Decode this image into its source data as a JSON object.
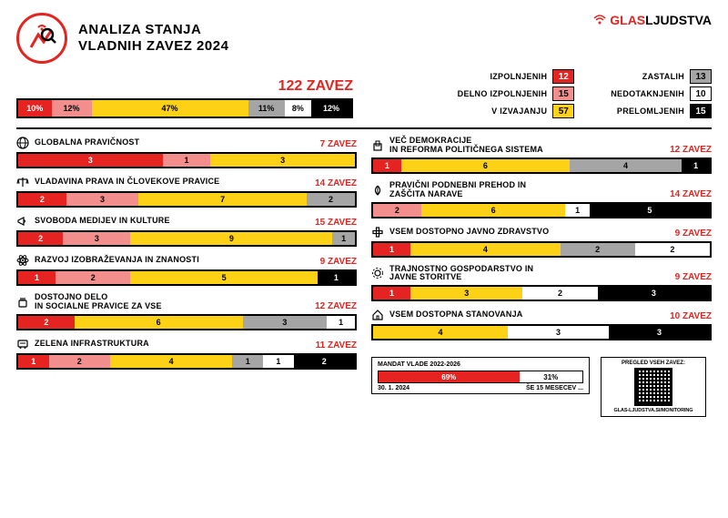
{
  "brand": {
    "glas": "GLAS",
    "ljudstva": "LJUDSTVA"
  },
  "title": {
    "line1": "ANALIZA STANJA",
    "line2": "VLADNIH ZAVEZ 2024"
  },
  "total": "122 ZAVEZ",
  "colors": {
    "izpolnjenih": "#e52320",
    "delno": "#f28e8c",
    "izvajanju": "#fcd116",
    "zastalih": "#a5a5a5",
    "nedotaknjenih": "#ffffff",
    "prelomljenih": "#000000",
    "text_on_dark": "#ffffff",
    "text_on_light": "#000000"
  },
  "summary_bar": [
    {
      "pct": 10,
      "label": "10%",
      "color": "#e52320",
      "text": "#fff"
    },
    {
      "pct": 12,
      "label": "12%",
      "color": "#f28e8c",
      "text": "#000"
    },
    {
      "pct": 47,
      "label": "47%",
      "color": "#fcd116",
      "text": "#000"
    },
    {
      "pct": 11,
      "label": "11%",
      "color": "#a5a5a5",
      "text": "#000"
    },
    {
      "pct": 8,
      "label": "8%",
      "color": "#ffffff",
      "text": "#000"
    },
    {
      "pct": 12,
      "label": "12%",
      "color": "#000000",
      "text": "#fff"
    }
  ],
  "status": {
    "left": [
      {
        "label": "IZPOLNJENIH",
        "value": "12",
        "bg": "#e52320",
        "fg": "#fff"
      },
      {
        "label": "DELNO IZPOLNJENIH",
        "value": "15",
        "bg": "#f28e8c",
        "fg": "#000"
      },
      {
        "label": "V IZVAJANJU",
        "value": "57",
        "bg": "#fcd116",
        "fg": "#000"
      }
    ],
    "right": [
      {
        "label": "ZASTALIH",
        "value": "13",
        "bg": "#a5a5a5",
        "fg": "#000"
      },
      {
        "label": "NEDOTAKNJENIH",
        "value": "10",
        "bg": "#ffffff",
        "fg": "#000"
      },
      {
        "label": "PRELOMLJENIH",
        "value": "15",
        "bg": "#000000",
        "fg": "#fff"
      }
    ]
  },
  "categories_left": [
    {
      "icon": "globe",
      "title": "GLOBALNA PRAVIČNOST",
      "count": "7 ZAVEZ",
      "segs": [
        {
          "v": 3,
          "c": "#e52320",
          "t": "#fff"
        },
        {
          "v": 1,
          "c": "#f28e8c",
          "t": "#000"
        },
        {
          "v": 3,
          "c": "#fcd116",
          "t": "#000"
        }
      ]
    },
    {
      "icon": "scale",
      "title": "VLADAVINA PRAVA IN ČLOVEKOVE PRAVICE",
      "count": "14 ZAVEZ",
      "segs": [
        {
          "v": 2,
          "c": "#e52320",
          "t": "#fff"
        },
        {
          "v": 3,
          "c": "#f28e8c",
          "t": "#000"
        },
        {
          "v": 7,
          "c": "#fcd116",
          "t": "#000"
        },
        {
          "v": 2,
          "c": "#a5a5a5",
          "t": "#000"
        }
      ]
    },
    {
      "icon": "megaphone",
      "title": "SVOBODA MEDIJEV IN KULTURE",
      "count": "15 ZAVEZ",
      "segs": [
        {
          "v": 2,
          "c": "#e52320",
          "t": "#fff"
        },
        {
          "v": 3,
          "c": "#f28e8c",
          "t": "#000"
        },
        {
          "v": 9,
          "c": "#fcd116",
          "t": "#000"
        },
        {
          "v": 1,
          "c": "#a5a5a5",
          "t": "#000"
        }
      ]
    },
    {
      "icon": "atom",
      "title": "RAZVOJ IZOBRAŽEVANJA IN ZNANOSTI",
      "count": "9 ZAVEZ",
      "segs": [
        {
          "v": 1,
          "c": "#e52320",
          "t": "#fff"
        },
        {
          "v": 2,
          "c": "#f28e8c",
          "t": "#000"
        },
        {
          "v": 5,
          "c": "#fcd116",
          "t": "#000"
        },
        {
          "v": 1,
          "c": "#000",
          "t": "#fff"
        }
      ]
    },
    {
      "icon": "fist",
      "title": "DOSTOJNO DELO\nIN SOCIALNE PRAVICE ZA VSE",
      "count": "12 ZAVEZ",
      "segs": [
        {
          "v": 2,
          "c": "#e52320",
          "t": "#fff"
        },
        {
          "v": 6,
          "c": "#fcd116",
          "t": "#000"
        },
        {
          "v": 3,
          "c": "#a5a5a5",
          "t": "#000"
        },
        {
          "v": 1,
          "c": "#fff",
          "t": "#000"
        }
      ]
    },
    {
      "icon": "train",
      "title": "ZELENA INFRASTRUKTURA",
      "count": "11 ZAVEZ",
      "segs": [
        {
          "v": 1,
          "c": "#e52320",
          "t": "#fff"
        },
        {
          "v": 2,
          "c": "#f28e8c",
          "t": "#000"
        },
        {
          "v": 4,
          "c": "#fcd116",
          "t": "#000"
        },
        {
          "v": 1,
          "c": "#a5a5a5",
          "t": "#000"
        },
        {
          "v": 1,
          "c": "#fff",
          "t": "#000"
        },
        {
          "v": 2,
          "c": "#000",
          "t": "#fff"
        }
      ]
    }
  ],
  "categories_right": [
    {
      "icon": "ballot",
      "title": "VEČ DEMOKRACIJE\nIN REFORMA POLITIČNEGA SISTEMA",
      "count": "12 ZAVEZ",
      "segs": [
        {
          "v": 1,
          "c": "#e52320",
          "t": "#fff"
        },
        {
          "v": 6,
          "c": "#fcd116",
          "t": "#000"
        },
        {
          "v": 4,
          "c": "#a5a5a5",
          "t": "#000"
        },
        {
          "v": 1,
          "c": "#000",
          "t": "#fff"
        }
      ]
    },
    {
      "icon": "leaf",
      "title": "PRAVIČNI PODNEBNI PREHOD IN\nZAŠČITA NARAVE",
      "count": "14 ZAVEZ",
      "segs": [
        {
          "v": 2,
          "c": "#f28e8c",
          "t": "#000"
        },
        {
          "v": 6,
          "c": "#fcd116",
          "t": "#000"
        },
        {
          "v": 1,
          "c": "#fff",
          "t": "#000"
        },
        {
          "v": 5,
          "c": "#000",
          "t": "#fff"
        }
      ]
    },
    {
      "icon": "health",
      "title": "VSEM DOSTOPNO JAVNO ZDRAVSTVO",
      "count": "9 ZAVEZ",
      "segs": [
        {
          "v": 1,
          "c": "#e52320",
          "t": "#fff"
        },
        {
          "v": 4,
          "c": "#fcd116",
          "t": "#000"
        },
        {
          "v": 2,
          "c": "#a5a5a5",
          "t": "#000"
        },
        {
          "v": 2,
          "c": "#fff",
          "t": "#000"
        }
      ]
    },
    {
      "icon": "gear",
      "title": "TRAJNOSTNO GOSPODARSTVO IN\nJAVNE STORITVE",
      "count": "9 ZAVEZ",
      "segs": [
        {
          "v": 1,
          "c": "#e52320",
          "t": "#fff"
        },
        {
          "v": 3,
          "c": "#fcd116",
          "t": "#000"
        },
        {
          "v": 2,
          "c": "#fff",
          "t": "#000"
        },
        {
          "v": 3,
          "c": "#000",
          "t": "#fff"
        }
      ]
    },
    {
      "icon": "house",
      "title": "VSEM DOSTOPNA STANOVANJA",
      "count": "10 ZAVEZ",
      "segs": [
        {
          "v": 4,
          "c": "#fcd116",
          "t": "#000"
        },
        {
          "v": 3,
          "c": "#fff",
          "t": "#000"
        },
        {
          "v": 3,
          "c": "#000",
          "t": "#fff"
        }
      ]
    }
  ],
  "mandate": {
    "title": "MANDAT VLADE 2022-2026",
    "elapsed_pct": 69,
    "elapsed_label": "69%",
    "remaining_pct": 31,
    "remaining_label": "31%",
    "elapsed_color": "#e52320",
    "remaining_color": "#ffffff",
    "date": "30. 1. 2024",
    "remaining_text": "ŠE 15 MESECEV ..."
  },
  "qr": {
    "title": "PREGLED VSEH ZAVEZ:",
    "url": "GLAS-LJUDSTVA.SI/MONITORING"
  }
}
